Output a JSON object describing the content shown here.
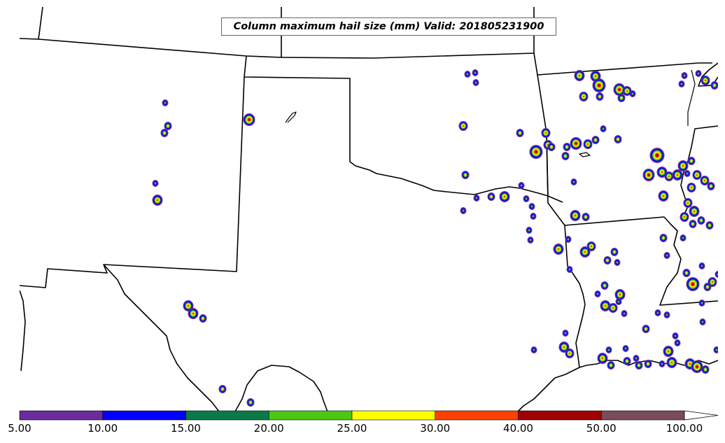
{
  "title": "Column maximum hail size (mm) Valid: 201805231900",
  "colorbar": {
    "segments": [
      {
        "from": "5.00",
        "to": "10.00",
        "color": "#6a2c9e"
      },
      {
        "from": "10.00",
        "to": "15.00",
        "color": "#0000ff"
      },
      {
        "from": "15.00",
        "to": "20.00",
        "color": "#0a7a4a"
      },
      {
        "from": "20.00",
        "to": "25.00",
        "color": "#4cc814"
      },
      {
        "from": "25.00",
        "to": "30.00",
        "color": "#ffff00"
      },
      {
        "from": "30.00",
        "to": "40.00",
        "color": "#ff4000"
      },
      {
        "from": "40.00",
        "to": "50.00",
        "color": "#a00000"
      },
      {
        "from": "50.00",
        "to": "100.00",
        "color": "#7a4a5e"
      }
    ],
    "extend": "max",
    "tick_labels": [
      "5.00",
      "10.00",
      "15.00",
      "20.00",
      "25.00",
      "30.00",
      "40.00",
      "50.00",
      "100.00"
    ]
  },
  "colors": {
    "border": "#000000",
    "background": "#ffffff"
  }
}
